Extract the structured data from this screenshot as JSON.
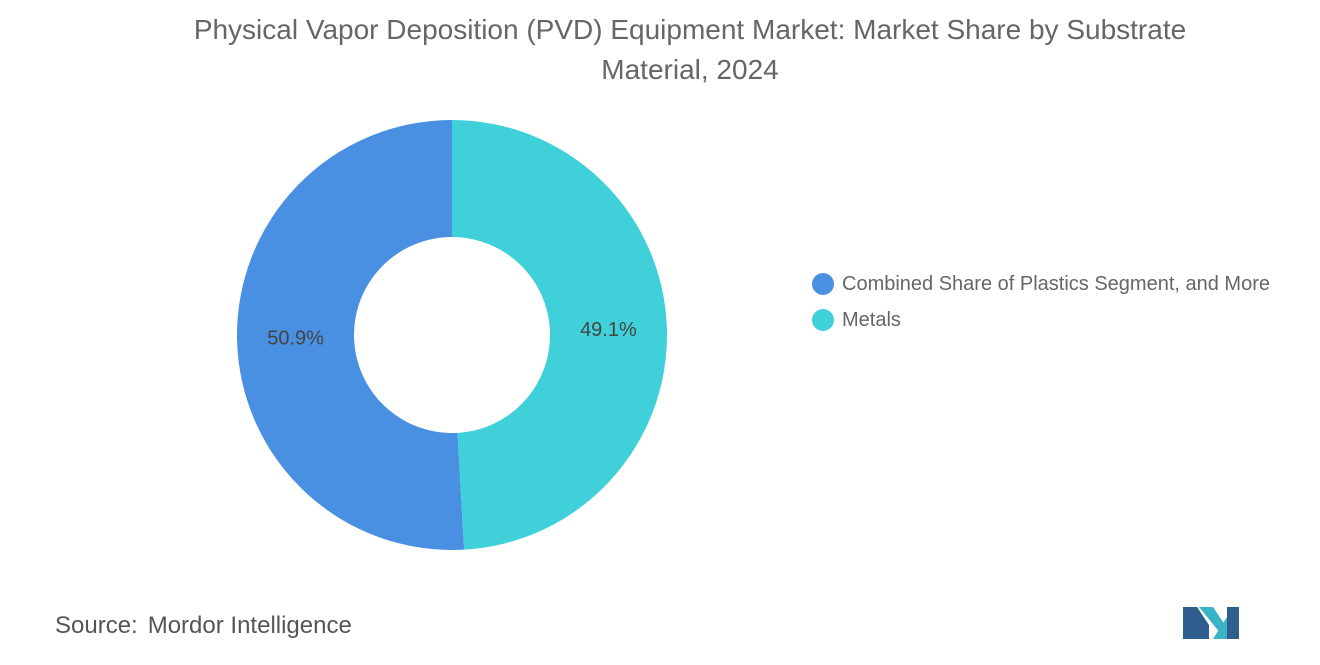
{
  "chart_data": {
    "type": "donut",
    "title": "Physical Vapor Deposition (PVD) Equipment Market: Market Share by Substrate Material, 2024",
    "categories": [
      "Combined Share of Plastics Segment, and More",
      "Metals"
    ],
    "values": [
      50.9,
      49.1
    ],
    "value_labels": [
      "50.9%",
      "49.1%"
    ],
    "colors": [
      "#4a90e2",
      "#40d0da"
    ],
    "source_label": "Source:",
    "source": "Mordor Intelligence"
  }
}
